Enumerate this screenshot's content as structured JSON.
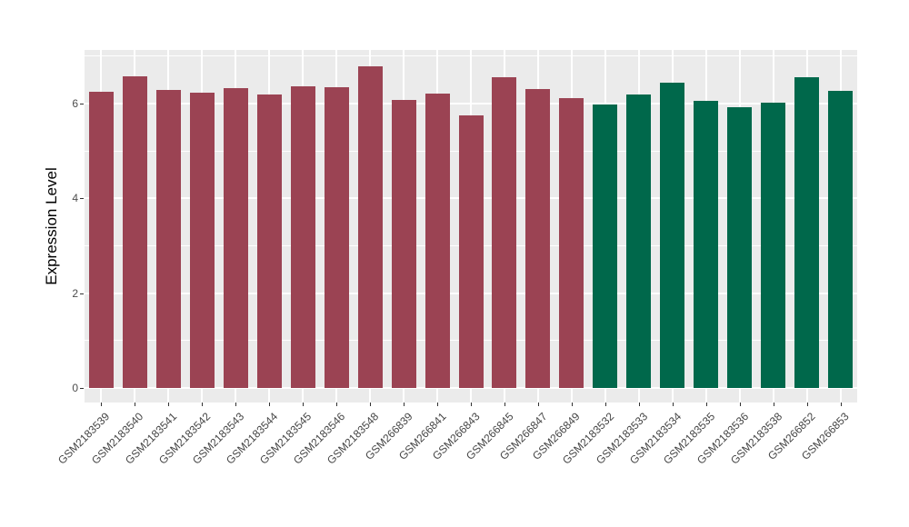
{
  "chart_data": {
    "type": "bar",
    "title": "",
    "xlabel": "",
    "ylabel": "Expression Level",
    "ylim": [
      0,
      7.12
    ],
    "y_major_ticks": [
      0,
      2,
      4,
      6
    ],
    "y_minor_ticks": [
      1,
      3,
      5,
      7
    ],
    "grid": "major and minor horizontal white gridlines, vertical white gridline at each category, gray panel",
    "legend": "none",
    "categories": [
      "GSM2183539",
      "GSM2183540",
      "GSM2183541",
      "GSM2183542",
      "GSM2183543",
      "GSM2183544",
      "GSM2183545",
      "GSM2183546",
      "GSM2183548",
      "GSM266839",
      "GSM266841",
      "GSM266843",
      "GSM266845",
      "GSM266847",
      "GSM266849",
      "GSM2183532",
      "GSM2183533",
      "GSM2183534",
      "GSM2183535",
      "GSM2183536",
      "GSM2183538",
      "GSM266852",
      "GSM266853"
    ],
    "values": [
      6.24,
      6.57,
      6.28,
      6.23,
      6.33,
      6.18,
      6.36,
      6.35,
      6.78,
      6.07,
      6.21,
      5.75,
      6.55,
      6.31,
      6.11,
      5.98,
      6.19,
      6.43,
      6.05,
      5.91,
      6.01,
      6.55,
      6.27
    ],
    "groups": [
      "red",
      "red",
      "red",
      "red",
      "red",
      "red",
      "red",
      "red",
      "red",
      "red",
      "red",
      "red",
      "red",
      "red",
      "red",
      "green",
      "green",
      "green",
      "green",
      "green",
      "green",
      "green",
      "green"
    ],
    "group_colors": {
      "red": "#9B4353",
      "green": "#00684B"
    }
  },
  "style_colors": {
    "panel_background": "#EBEBEB",
    "gridline": "#FFFFFF",
    "tick_mark": "#333333",
    "tick_label": "#4D4D4D",
    "axis_title": "#000000",
    "figure_background": "#FFFFFF"
  }
}
